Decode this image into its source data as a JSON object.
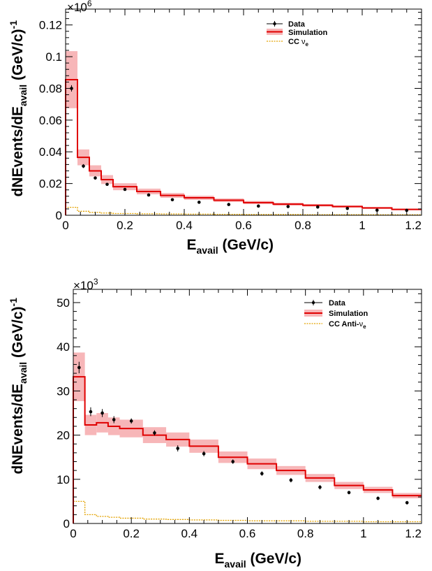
{
  "chart_data": [
    {
      "type": "line",
      "multiplier_base": "×10",
      "multiplier_exp": "6",
      "xlabel_main": "E",
      "xlabel_sub": "avail",
      "xlabel_tail": " (GeV/c)",
      "ylabel_main": "dNEvents/dE",
      "ylabel_sub": "avail",
      "ylabel_tail": " (GeV/c)",
      "ylabel_sup": "-1",
      "xlim": [
        0,
        1.2
      ],
      "ylim": [
        0,
        0.13
      ],
      "x_ticks": [
        0,
        0.2,
        0.4,
        0.6,
        0.8,
        1,
        1.2
      ],
      "x_tick_labels": [
        "0",
        "0.2",
        "0.4",
        "0.6",
        "0.8",
        "1",
        "1.2"
      ],
      "y_ticks": [
        0,
        0.02,
        0.04,
        0.06,
        0.08,
        0.1,
        0.12
      ],
      "y_tick_labels": [
        "0",
        "0.02",
        "0.04",
        "0.06",
        "0.08",
        "0.1",
        "0.12"
      ],
      "legend": {
        "data": "Data",
        "simulation": "Simulation",
        "bkg_main": "CC ",
        "bkg_nu": "ν",
        "bkg_sub": "e"
      },
      "colors": {
        "data": "#000000",
        "simulation": "#e00000",
        "band": "#f7b6b8",
        "background": "#e3a200"
      },
      "bin_edges": [
        0,
        0.04,
        0.08,
        0.12,
        0.16,
        0.24,
        0.32,
        0.4,
        0.5,
        0.6,
        0.7,
        0.8,
        0.9,
        1.0,
        1.1,
        1.2
      ],
      "simulation": [
        0.0855,
        0.0365,
        0.028,
        0.0225,
        0.018,
        0.015,
        0.0125,
        0.011,
        0.0095,
        0.008,
        0.007,
        0.0063,
        0.0055,
        0.0046,
        0.0037
      ],
      "sim_err": [
        0.018,
        0.005,
        0.0035,
        0.0028,
        0.0022,
        0.0018,
        0.0015,
        0.0013,
        0.0011,
        0.001,
        0.0009,
        0.0008,
        0.0007,
        0.0006,
        0.0005
      ],
      "data_x": [
        0.02,
        0.06,
        0.1,
        0.14,
        0.2,
        0.28,
        0.36,
        0.45,
        0.55,
        0.65,
        0.75,
        0.85,
        0.95,
        1.05,
        1.15
      ],
      "data_y": [
        0.08,
        0.031,
        0.0235,
        0.0195,
        0.0163,
        0.0128,
        0.0098,
        0.0082,
        0.0068,
        0.0058,
        0.0055,
        0.0052,
        0.0043,
        0.0032,
        0.0031
      ],
      "data_err": [
        0.002,
        0.0012,
        0.001,
        0.0008,
        0.0006,
        0.0005,
        0.0004,
        0.0004,
        0.0003,
        0.0003,
        0.0003,
        0.0003,
        0.0003,
        0.0002,
        0.0002
      ],
      "background": [
        0.005,
        0.0025,
        0.0018,
        0.0014,
        0.0011,
        0.0009,
        0.0008,
        0.0007,
        0.0006,
        0.0005,
        0.0005,
        0.0004,
        0.0004,
        0.0003,
        0.0003
      ]
    },
    {
      "type": "line",
      "multiplier_base": "×10",
      "multiplier_exp": "3",
      "xlabel_main": "E",
      "xlabel_sub": "avail",
      "xlabel_tail": " (GeV/c)",
      "ylabel_main": "dNEvents/dE",
      "ylabel_sub": "avail",
      "ylabel_tail": " (GeV/c)",
      "ylabel_sup": "-1",
      "xlim": [
        0,
        1.2
      ],
      "ylim": [
        0,
        53
      ],
      "x_ticks": [
        0,
        0.2,
        0.4,
        0.6,
        0.8,
        1,
        1.2
      ],
      "x_tick_labels": [
        "0",
        "0.2",
        "0.4",
        "0.6",
        "0.8",
        "1",
        "1.2"
      ],
      "y_ticks": [
        0,
        10,
        20,
        30,
        40,
        50
      ],
      "y_tick_labels": [
        "0",
        "10",
        "20",
        "30",
        "40",
        "50"
      ],
      "legend": {
        "data": "Data",
        "simulation": "Simulation",
        "bkg_main": "CC Anti-",
        "bkg_nu": "ν",
        "bkg_sub": "e"
      },
      "colors": {
        "data": "#000000",
        "simulation": "#e00000",
        "band": "#f7b6b8",
        "background": "#e3a200"
      },
      "bin_edges": [
        0,
        0.04,
        0.08,
        0.12,
        0.16,
        0.24,
        0.32,
        0.4,
        0.5,
        0.6,
        0.7,
        0.8,
        0.9,
        1.0,
        1.1,
        1.2
      ],
      "simulation": [
        33.2,
        22.3,
        22.8,
        22.0,
        21.5,
        20.0,
        19.0,
        17.5,
        15.0,
        13.5,
        12.0,
        10.3,
        8.6,
        7.6,
        6.3
      ],
      "sim_err": [
        5.5,
        2.3,
        2.2,
        2.0,
        2.0,
        1.8,
        1.6,
        1.5,
        1.3,
        1.2,
        1.0,
        0.9,
        0.8,
        0.7,
        0.6
      ],
      "data_x": [
        0.02,
        0.06,
        0.1,
        0.14,
        0.2,
        0.28,
        0.36,
        0.45,
        0.55,
        0.65,
        0.75,
        0.85,
        0.95,
        1.05,
        1.15
      ],
      "data_y": [
        35.3,
        25.3,
        25.0,
        23.5,
        23.2,
        20.5,
        17.0,
        15.8,
        14.0,
        11.3,
        9.8,
        8.2,
        7.0,
        5.7,
        4.7
      ],
      "data_err": [
        1.3,
        1.0,
        0.9,
        0.8,
        0.6,
        0.6,
        0.7,
        0.6,
        0.5,
        0.5,
        0.5,
        0.5,
        0.4,
        0.4,
        0.4
      ],
      "background": [
        5.0,
        2.0,
        1.6,
        1.4,
        1.2,
        1.0,
        0.9,
        0.8,
        0.7,
        0.6,
        0.6,
        0.5,
        0.5,
        0.4,
        0.4
      ]
    }
  ]
}
